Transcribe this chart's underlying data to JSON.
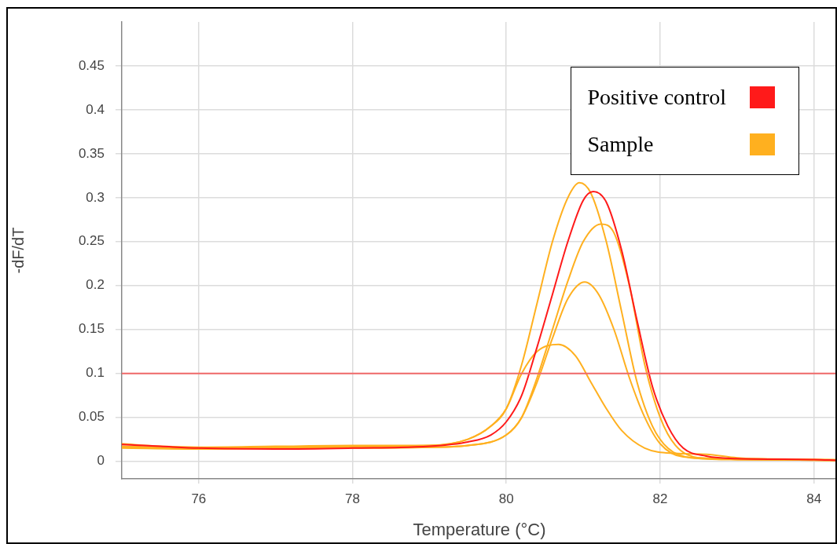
{
  "chart_data": {
    "type": "line",
    "xlabel": "Temperature (°C)",
    "ylabel": "-dF/dT",
    "xlim": [
      75,
      84.3
    ],
    "xticks": [
      76,
      78,
      80,
      82,
      84
    ],
    "ylim": [
      -0.02,
      0.5
    ],
    "yticks": [
      0,
      0.05,
      0.1,
      0.15,
      0.2,
      0.25,
      0.3,
      0.35,
      0.4,
      0.45
    ],
    "grid": true,
    "legend": "top right",
    "marker": "none",
    "line_style": "solid",
    "ref_lines": [
      {
        "axis": "y",
        "value": 0.1,
        "color": "#f06a6a"
      }
    ],
    "series": [
      {
        "name": "Positive control",
        "color": "#ff1a1a",
        "x": [
          75,
          75.5,
          76,
          77,
          78,
          79,
          79.5,
          79.8,
          80,
          80.2,
          80.4,
          80.6,
          80.8,
          81,
          81.13,
          81.3,
          81.5,
          81.7,
          81.9,
          82.1,
          82.3,
          82.6,
          83,
          84,
          84.3
        ],
        "values": [
          0.019,
          0.017,
          0.015,
          0.014,
          0.015,
          0.017,
          0.022,
          0.03,
          0.045,
          0.075,
          0.13,
          0.19,
          0.25,
          0.297,
          0.307,
          0.295,
          0.24,
          0.16,
          0.085,
          0.04,
          0.015,
          0.006,
          0.003,
          0.002,
          0.001
        ]
      },
      {
        "name": "Sample",
        "color": "#ffb01f",
        "x": [
          75,
          76,
          77,
          78,
          79,
          79.5,
          79.8,
          80,
          80.2,
          80.4,
          80.6,
          80.8,
          80.95,
          81.1,
          81.3,
          81.5,
          81.7,
          81.9,
          82.1,
          82.4,
          83,
          84.3
        ],
        "values": [
          0.016,
          0.014,
          0.016,
          0.017,
          0.018,
          0.025,
          0.04,
          0.06,
          0.11,
          0.18,
          0.25,
          0.3,
          0.317,
          0.305,
          0.25,
          0.17,
          0.09,
          0.04,
          0.015,
          0.004,
          0.002,
          0.001
        ]
      },
      {
        "color": "#ffb01f",
        "x": [
          75,
          76,
          77,
          78,
          79,
          79.5,
          80,
          80.2,
          80.4,
          80.6,
          80.8,
          81,
          81.23,
          81.4,
          81.6,
          81.8,
          82,
          82.2,
          82.5,
          83,
          84.3
        ],
        "values": [
          0.015,
          0.014,
          0.015,
          0.016,
          0.016,
          0.018,
          0.03,
          0.05,
          0.095,
          0.15,
          0.205,
          0.25,
          0.27,
          0.26,
          0.2,
          0.11,
          0.05,
          0.018,
          0.004,
          0.002,
          0.001
        ]
      },
      {
        "color": "#ffb01f",
        "x": [
          75,
          76,
          77,
          78,
          79,
          79.5,
          80,
          80.2,
          80.4,
          80.6,
          80.8,
          81.02,
          81.2,
          81.4,
          81.6,
          81.8,
          82,
          82.3,
          83,
          84.3
        ],
        "values": [
          0.017,
          0.015,
          0.015,
          0.015,
          0.016,
          0.018,
          0.03,
          0.05,
          0.09,
          0.14,
          0.185,
          0.204,
          0.19,
          0.15,
          0.095,
          0.05,
          0.02,
          0.005,
          0.003,
          0.002
        ]
      },
      {
        "color": "#ffb01f",
        "x": [
          75,
          75.5,
          76,
          77,
          78,
          79,
          79.5,
          79.8,
          80,
          80.2,
          80.4,
          80.68,
          80.9,
          81.1,
          81.3,
          81.5,
          81.8,
          82.2,
          82.6,
          83,
          84.3
        ],
        "values": [
          0.02,
          0.017,
          0.016,
          0.017,
          0.018,
          0.018,
          0.025,
          0.04,
          0.06,
          0.1,
          0.125,
          0.133,
          0.12,
          0.09,
          0.06,
          0.035,
          0.015,
          0.009,
          0.008,
          0.004,
          0.001
        ]
      }
    ]
  }
}
